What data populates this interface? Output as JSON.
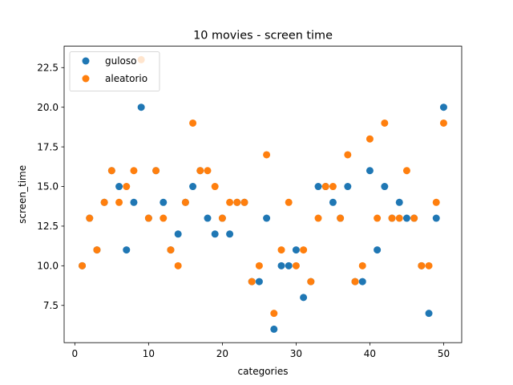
{
  "chart_data": {
    "type": "scatter",
    "title": "10 movies - screen time",
    "xlabel": "categories",
    "ylabel": "screen_time",
    "xlim": [
      -1.45,
      52.45
    ],
    "ylim": [
      5.15,
      23.85
    ],
    "xticks": [
      0,
      10,
      20,
      30,
      40,
      50
    ],
    "xtick_labels": [
      "0",
      "10",
      "20",
      "30",
      "40",
      "50"
    ],
    "yticks": [
      7.5,
      10.0,
      12.5,
      15.0,
      17.5,
      20.0,
      22.5
    ],
    "ytick_labels": [
      "7.5",
      "10.0",
      "12.5",
      "15.0",
      "17.5",
      "20.0",
      "22.5"
    ],
    "grid": false,
    "legend_position": "top-left",
    "series": [
      {
        "name": "guloso",
        "color": "#1f77b4",
        "x": [
          1,
          2,
          3,
          4,
          5,
          6,
          7,
          8,
          9,
          10,
          11,
          12,
          13,
          14,
          15,
          16,
          17,
          18,
          19,
          20,
          21,
          22,
          23,
          24,
          25,
          26,
          27,
          28,
          29,
          30,
          31,
          32,
          33,
          34,
          35,
          36,
          37,
          38,
          39,
          40,
          41,
          42,
          43,
          44,
          45,
          46,
          47,
          48,
          49,
          50
        ],
        "y": [
          10,
          13,
          11,
          14,
          16,
          15,
          11,
          14,
          20,
          13,
          16,
          14,
          11,
          12,
          14,
          15,
          16,
          13,
          12,
          13,
          12,
          14,
          14,
          9,
          9,
          13,
          6,
          10,
          10,
          11,
          8,
          9,
          15,
          15,
          14,
          13,
          15,
          9,
          9,
          16,
          11,
          15,
          13,
          14,
          13,
          13,
          10,
          7,
          13,
          20
        ]
      },
      {
        "name": "aleatorio",
        "color": "#ff7f0e",
        "x": [
          1,
          2,
          3,
          4,
          5,
          6,
          7,
          8,
          9,
          10,
          11,
          12,
          13,
          14,
          15,
          16,
          17,
          18,
          19,
          20,
          21,
          22,
          23,
          24,
          25,
          26,
          27,
          28,
          29,
          30,
          31,
          32,
          33,
          34,
          35,
          36,
          37,
          38,
          39,
          40,
          41,
          42,
          43,
          44,
          45,
          46,
          47,
          48,
          49,
          50
        ],
        "y": [
          10,
          13,
          11,
          14,
          16,
          14,
          15,
          16,
          23,
          13,
          16,
          13,
          11,
          10,
          14,
          19,
          16,
          16,
          15,
          13,
          14,
          14,
          14,
          9,
          10,
          17,
          7,
          11,
          14,
          10,
          11,
          9,
          13,
          15,
          15,
          13,
          17,
          9,
          10,
          18,
          13,
          19,
          13,
          13,
          16,
          13,
          10,
          10,
          14,
          19
        ]
      }
    ]
  }
}
